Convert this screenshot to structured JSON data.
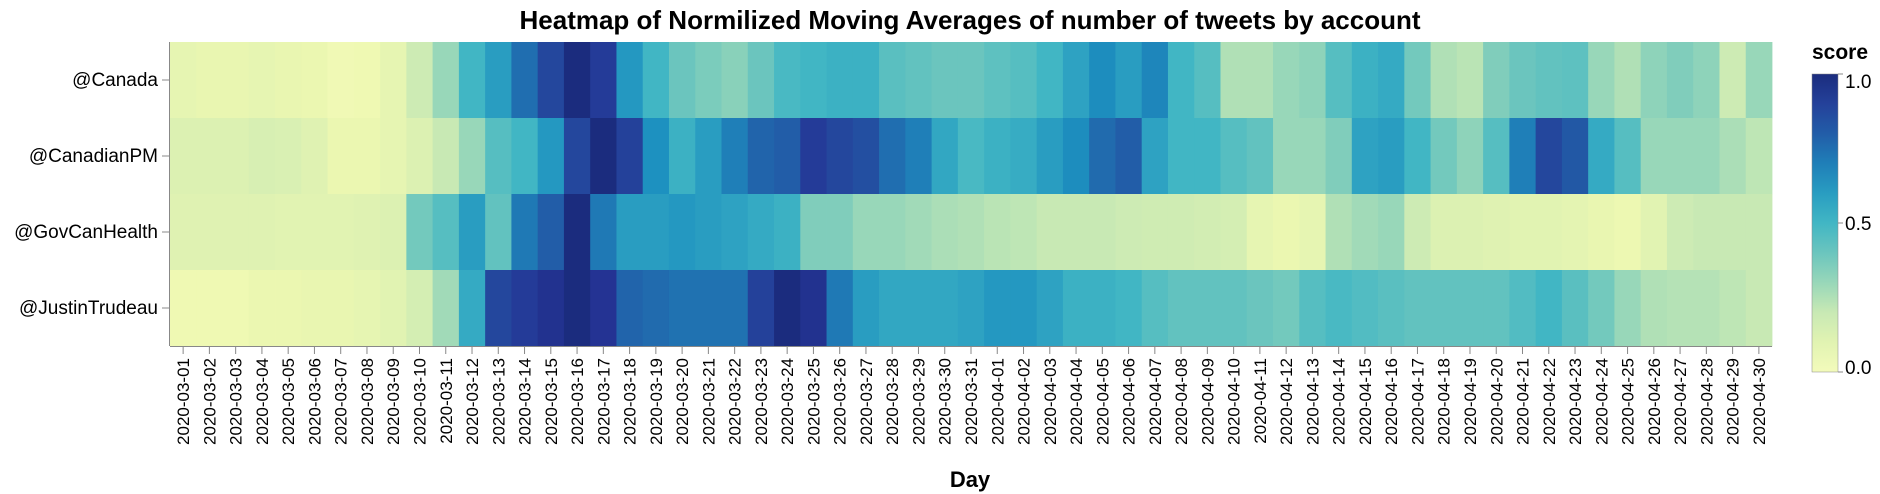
{
  "chart_data": {
    "type": "heatmap",
    "title": "Heatmap of Normilized Moving Averages of number of tweets by account",
    "xlabel": "Day",
    "ylabel": "",
    "legend": {
      "title": "score",
      "position": "right",
      "ticks": [
        "1.0",
        "0.5",
        "0.0"
      ],
      "range": [
        0,
        1
      ]
    },
    "colorscale": "YlGnBu",
    "rows": [
      "@Canada",
      "@CanadianPM",
      "@GovCanHealth",
      "@JustinTrudeau"
    ],
    "columns": [
      "2020-03-01",
      "2020-03-02",
      "2020-03-03",
      "2020-03-04",
      "2020-03-05",
      "2020-03-06",
      "2020-03-07",
      "2020-03-08",
      "2020-03-09",
      "2020-03-10",
      "2020-03-11",
      "2020-03-12",
      "2020-03-13",
      "2020-03-14",
      "2020-03-15",
      "2020-03-16",
      "2020-03-17",
      "2020-03-18",
      "2020-03-19",
      "2020-03-20",
      "2020-03-21",
      "2020-03-22",
      "2020-03-23",
      "2020-03-24",
      "2020-03-25",
      "2020-03-26",
      "2020-03-27",
      "2020-03-28",
      "2020-03-29",
      "2020-03-30",
      "2020-03-31",
      "2020-04-01",
      "2020-04-02",
      "2020-04-03",
      "2020-04-04",
      "2020-04-05",
      "2020-04-06",
      "2020-04-07",
      "2020-04-08",
      "2020-04-09",
      "2020-04-10",
      "2020-04-11",
      "2020-04-12",
      "2020-04-13",
      "2020-04-14",
      "2020-04-15",
      "2020-04-16",
      "2020-04-17",
      "2020-04-18",
      "2020-04-19",
      "2020-04-20",
      "2020-04-21",
      "2020-04-22",
      "2020-04-23",
      "2020-04-24",
      "2020-04-25",
      "2020-04-26",
      "2020-04-27",
      "2020-04-28",
      "2020-04-29",
      "2020-04-30"
    ],
    "values": [
      [
        0.08,
        0.07,
        0.07,
        0.08,
        0.07,
        0.06,
        0.03,
        0.04,
        0.08,
        0.18,
        0.3,
        0.5,
        0.6,
        0.75,
        0.88,
        1.0,
        0.92,
        0.62,
        0.5,
        0.4,
        0.36,
        0.33,
        0.4,
        0.48,
        0.5,
        0.52,
        0.52,
        0.44,
        0.42,
        0.4,
        0.4,
        0.43,
        0.45,
        0.5,
        0.58,
        0.66,
        0.6,
        0.68,
        0.5,
        0.45,
        0.25,
        0.25,
        0.3,
        0.32,
        0.45,
        0.52,
        0.55,
        0.38,
        0.25,
        0.23,
        0.35,
        0.4,
        0.42,
        0.43,
        0.3,
        0.25,
        0.32,
        0.35,
        0.32,
        0.18,
        0.3
      ],
      [
        0.12,
        0.12,
        0.12,
        0.14,
        0.13,
        0.11,
        0.06,
        0.06,
        0.08,
        0.12,
        0.2,
        0.3,
        0.45,
        0.5,
        0.62,
        0.88,
        1.0,
        0.9,
        0.65,
        0.52,
        0.6,
        0.7,
        0.78,
        0.8,
        0.92,
        0.88,
        0.85,
        0.75,
        0.7,
        0.56,
        0.48,
        0.52,
        0.54,
        0.6,
        0.66,
        0.76,
        0.8,
        0.58,
        0.5,
        0.5,
        0.45,
        0.42,
        0.3,
        0.3,
        0.35,
        0.58,
        0.6,
        0.5,
        0.38,
        0.32,
        0.45,
        0.7,
        0.88,
        0.82,
        0.55,
        0.45,
        0.3,
        0.3,
        0.3,
        0.26,
        0.22
      ],
      [
        0.11,
        0.11,
        0.11,
        0.11,
        0.1,
        0.1,
        0.1,
        0.11,
        0.12,
        0.38,
        0.45,
        0.6,
        0.42,
        0.72,
        0.8,
        1.0,
        0.72,
        0.6,
        0.6,
        0.62,
        0.6,
        0.58,
        0.55,
        0.52,
        0.35,
        0.35,
        0.3,
        0.3,
        0.28,
        0.26,
        0.25,
        0.23,
        0.22,
        0.2,
        0.2,
        0.2,
        0.18,
        0.17,
        0.17,
        0.16,
        0.15,
        0.08,
        0.06,
        0.08,
        0.25,
        0.28,
        0.3,
        0.18,
        0.12,
        0.12,
        0.11,
        0.1,
        0.1,
        0.09,
        0.07,
        0.05,
        0.1,
        0.18,
        0.2,
        0.2,
        0.2
      ],
      [
        0.04,
        0.04,
        0.04,
        0.06,
        0.06,
        0.07,
        0.07,
        0.08,
        0.1,
        0.15,
        0.28,
        0.55,
        0.88,
        0.92,
        0.96,
        1.0,
        0.95,
        0.78,
        0.76,
        0.74,
        0.74,
        0.74,
        0.9,
        1.0,
        0.96,
        0.72,
        0.6,
        0.56,
        0.56,
        0.56,
        0.58,
        0.62,
        0.62,
        0.58,
        0.52,
        0.52,
        0.5,
        0.45,
        0.42,
        0.42,
        0.42,
        0.4,
        0.38,
        0.45,
        0.48,
        0.46,
        0.44,
        0.42,
        0.42,
        0.42,
        0.42,
        0.46,
        0.5,
        0.44,
        0.38,
        0.3,
        0.25,
        0.24,
        0.24,
        0.22,
        0.2
      ]
    ]
  }
}
